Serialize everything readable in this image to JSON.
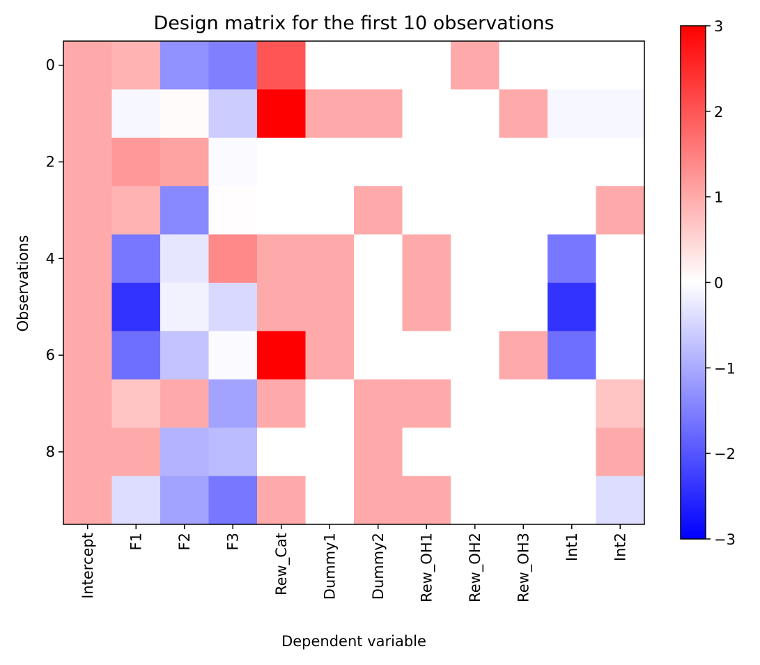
{
  "chart_data": {
    "type": "heatmap",
    "title": "Design matrix for the first 10 observations",
    "xlabel": "Dependent variable",
    "ylabel": "Observations",
    "columns": [
      "Intercept",
      "F1",
      "F2",
      "F3",
      "Rew_Cat",
      "Dummy1",
      "Dummy2",
      "Rew_OH1",
      "Rew_OH2",
      "Rew_OH3",
      "Int1",
      "Int2"
    ],
    "rows": [
      0,
      1,
      2,
      3,
      4,
      5,
      6,
      7,
      8,
      9
    ],
    "y_tick_labels": [
      "0",
      "2",
      "4",
      "6",
      "8"
    ],
    "y_tick_rows": [
      0,
      2,
      4,
      6,
      8
    ],
    "values": [
      [
        1,
        0.9,
        -1.3,
        -1.5,
        2.0,
        0,
        0,
        0,
        1,
        0,
        0,
        0
      ],
      [
        1,
        -0.1,
        0.05,
        -0.6,
        3.0,
        1,
        1,
        0,
        0,
        1,
        -0.1,
        -0.1
      ],
      [
        1,
        1.2,
        1.1,
        -0.05,
        0,
        0,
        0,
        0,
        0,
        0,
        0,
        0
      ],
      [
        1,
        0.9,
        -1.4,
        0.02,
        0,
        0,
        1,
        0,
        0,
        0,
        0,
        1
      ],
      [
        1,
        -1.6,
        -0.3,
        1.4,
        1,
        1,
        0,
        1,
        0,
        0,
        -1.6,
        0
      ],
      [
        1,
        -2.4,
        -0.15,
        -0.45,
        1,
        1,
        0,
        1,
        0,
        0,
        -2.4,
        0
      ],
      [
        1,
        -1.7,
        -0.7,
        -0.05,
        3.0,
        1,
        0,
        0,
        0,
        1,
        -1.7,
        0
      ],
      [
        1,
        0.7,
        1.0,
        -1.1,
        1,
        0,
        1,
        1,
        0,
        0,
        0,
        0.7
      ],
      [
        1,
        1.0,
        -0.9,
        -0.8,
        0,
        0,
        1,
        0,
        0,
        0,
        0,
        1.0
      ],
      [
        1,
        -0.4,
        -1.1,
        -1.6,
        1,
        0,
        1,
        1,
        0,
        0,
        0,
        -0.4
      ]
    ],
    "colormap": "bwr",
    "color_low": "#0000ff",
    "color_mid": "#ffffff",
    "color_high": "#ff0000",
    "vmin": -3,
    "vmax": 3,
    "colorbar_ticks": [
      3,
      2,
      1,
      0,
      -1,
      -2,
      -3
    ],
    "colorbar_tick_labels": [
      "3",
      "2",
      "1",
      "0",
      "−1",
      "−2",
      "−3"
    ],
    "grid": false
  }
}
